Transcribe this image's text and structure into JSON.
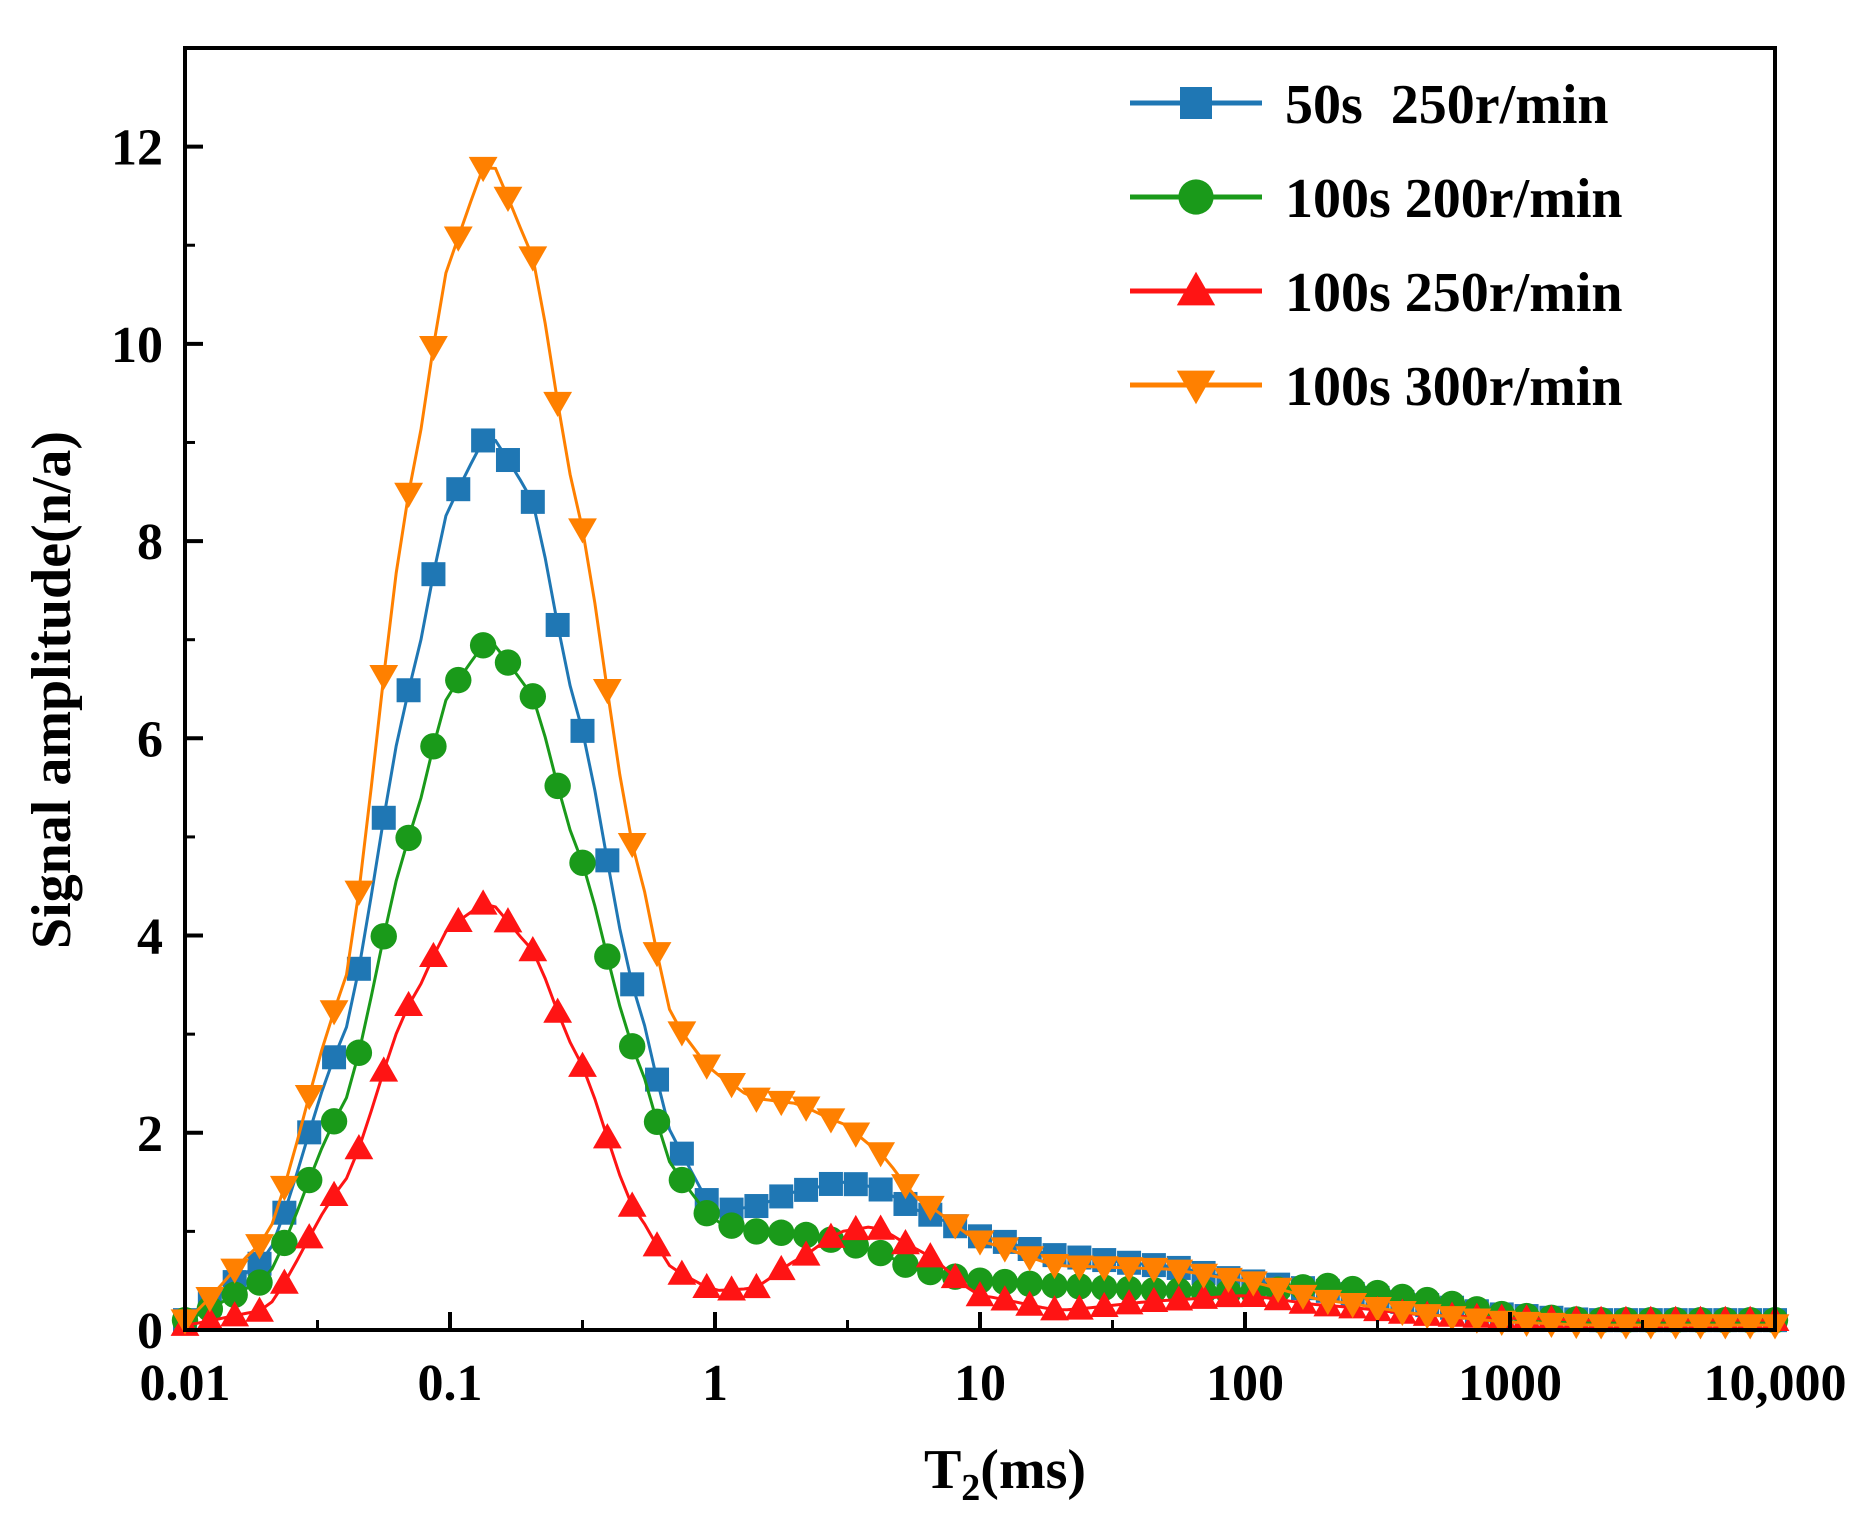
{
  "chart_data": {
    "type": "line",
    "title": "",
    "xlabel_main": "T",
    "xlabel_sub": "2",
    "xlabel_unit": "(ms)",
    "ylabel": "Signal amplitude(n/a)",
    "xscale": "log",
    "xlim": [
      0.01,
      10000
    ],
    "ylim": [
      0,
      13
    ],
    "x_ticks": [
      0.01,
      0.1,
      1,
      10,
      100,
      1000,
      10000
    ],
    "x_tick_labels": [
      "0.01",
      "0.1",
      "1",
      "10",
      "100",
      "1000",
      "10,000"
    ],
    "y_ticks": [
      0,
      2,
      4,
      6,
      8,
      10,
      12
    ],
    "y_tick_labels": [
      "0",
      "2",
      "4",
      "6",
      "8",
      "10",
      "12"
    ],
    "grid": false,
    "legend_position": "top-right",
    "sample_count": 64,
    "series": [
      {
        "name": "50s  250r/min",
        "color": "#1f77b4",
        "marker": "square",
        "x": [
          0.01,
          0.02,
          0.04,
          0.07,
          0.1,
          0.14,
          0.2,
          0.3,
          0.5,
          0.7,
          1,
          1.4,
          2,
          3,
          4,
          6,
          10,
          20,
          50,
          100,
          200,
          500,
          1000,
          2000,
          10000
        ],
        "values": [
          0.1,
          0.7,
          3.0,
          6.5,
          8.4,
          9.1,
          8.5,
          6.3,
          3.4,
          1.9,
          1.2,
          1.25,
          1.4,
          1.5,
          1.45,
          1.2,
          0.95,
          0.75,
          0.65,
          0.5,
          0.4,
          0.25,
          0.15,
          0.1,
          0.1
        ]
      },
      {
        "name": "100s 200r/min",
        "color": "#1a9a1a",
        "marker": "circle",
        "x": [
          0.01,
          0.02,
          0.04,
          0.07,
          0.1,
          0.14,
          0.2,
          0.3,
          0.5,
          0.7,
          1,
          1.4,
          2,
          3,
          4,
          6,
          10,
          20,
          50,
          100,
          200,
          500,
          1000,
          2000,
          10000
        ],
        "values": [
          0.1,
          0.5,
          2.3,
          5.0,
          6.5,
          7.0,
          6.5,
          4.9,
          2.8,
          1.6,
          1.1,
          1.0,
          0.98,
          0.9,
          0.8,
          0.6,
          0.5,
          0.45,
          0.4,
          0.38,
          0.45,
          0.3,
          0.15,
          0.1,
          0.1
        ]
      },
      {
        "name": "100s 250r/min",
        "color": "#ff1414",
        "marker": "triangle-up",
        "x": [
          0.01,
          0.02,
          0.04,
          0.07,
          0.1,
          0.14,
          0.2,
          0.3,
          0.5,
          0.7,
          1,
          1.4,
          2,
          3,
          4,
          6,
          10,
          20,
          50,
          100,
          200,
          500,
          1000,
          2000,
          10000
        ],
        "values": [
          0.05,
          0.2,
          1.5,
          3.3,
          4.1,
          4.35,
          3.9,
          2.8,
          1.2,
          0.6,
          0.4,
          0.42,
          0.7,
          1.0,
          1.05,
          0.8,
          0.35,
          0.2,
          0.3,
          0.35,
          0.25,
          0.15,
          0.12,
          0.1,
          0.1
        ]
      },
      {
        "name": "100s 300r/min",
        "color": "#ff8000",
        "marker": "triangle-down",
        "x": [
          0.01,
          0.02,
          0.04,
          0.07,
          0.1,
          0.14,
          0.2,
          0.3,
          0.5,
          0.7,
          1,
          1.4,
          2,
          3,
          4,
          6,
          10,
          20,
          50,
          100,
          200,
          500,
          1000,
          2000,
          10000
        ],
        "values": [
          0.1,
          0.9,
          3.5,
          8.5,
          10.9,
          11.9,
          11.0,
          8.4,
          4.8,
          3.1,
          2.6,
          2.35,
          2.3,
          2.1,
          1.85,
          1.3,
          0.9,
          0.65,
          0.62,
          0.5,
          0.3,
          0.15,
          0.08,
          0.05,
          0.05
        ]
      }
    ]
  }
}
